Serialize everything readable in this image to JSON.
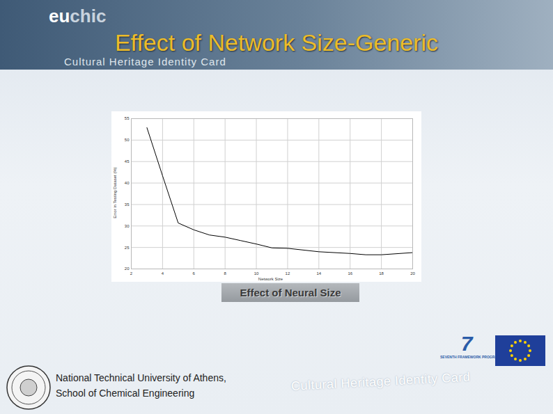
{
  "chart_data": {
    "type": "line",
    "title": "Effect of Network Size-Generic",
    "x_label": "Network Size",
    "y_label": "Error in Testing Dataset (%)",
    "x": [
      3,
      4,
      5,
      6,
      7,
      8,
      9,
      10,
      11,
      12,
      14,
      16,
      17,
      18,
      20
    ],
    "values": [
      52.9,
      41.7,
      30.7,
      29.1,
      27.9,
      27.4,
      26.6,
      25.8,
      24.9,
      24.8,
      24.0,
      23.6,
      23.3,
      23.3,
      23.8
    ],
    "color": "#000000",
    "xlim": [
      2,
      20
    ],
    "xticks": [
      2,
      4,
      6,
      8,
      10,
      12,
      14,
      16,
      18,
      20
    ],
    "ylim": [
      20,
      55
    ],
    "yticks": [
      20,
      25,
      30,
      35,
      40,
      45,
      50,
      55
    ],
    "grid": true
  },
  "slide": {
    "logo": [
      "eu",
      "chic"
    ],
    "banner": "Cultural Heritage Identity Card",
    "caption": "Effect of Neural Size",
    "institution": [
      "National Technical University of Athens,",
      "School of Chemical Engineering"
    ],
    "footer": "Cultural Heritage Identity Card",
    "programme_number": "7",
    "programme": "SEVENTH FRAMEWORK PROGRAMME"
  }
}
